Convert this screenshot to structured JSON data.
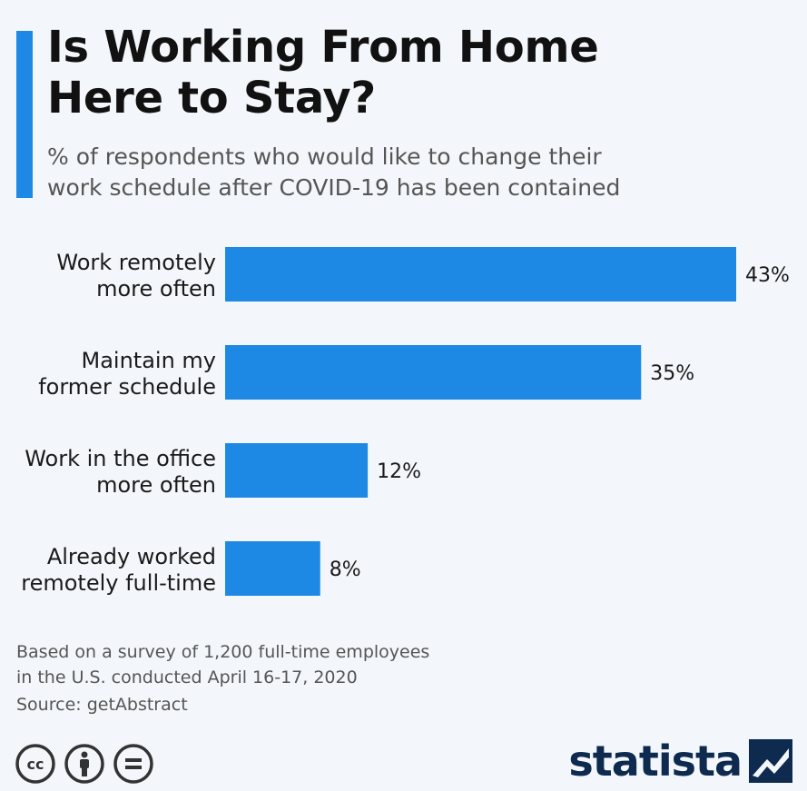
{
  "header": {
    "title_lines": [
      "Is Working From Home",
      "Here to Stay?"
    ],
    "subtitle_lines": [
      "% of respondents who would like to change their",
      "work schedule after COVID-19 has been contained"
    ]
  },
  "chart_data": {
    "type": "bar",
    "orientation": "horizontal",
    "categories": [
      [
        "Work remotely",
        "more often"
      ],
      [
        "Maintain my",
        "former schedule"
      ],
      [
        "Work in the office",
        "more often"
      ],
      [
        "Already worked",
        "remotely full-time"
      ]
    ],
    "values": [
      43,
      35,
      12,
      8
    ],
    "value_suffix": "%",
    "bar_color": "#1e88e5",
    "grid": false
  },
  "footer": {
    "note_lines": [
      "Based on a survey of 1,200 full-time employees",
      "in the U.S. conducted April 16-17, 2020"
    ],
    "source": "Source: getAbstract",
    "license_icons": [
      "cc-icon",
      "attribution-icon",
      "no-derivatives-icon"
    ],
    "brand": "statista"
  }
}
